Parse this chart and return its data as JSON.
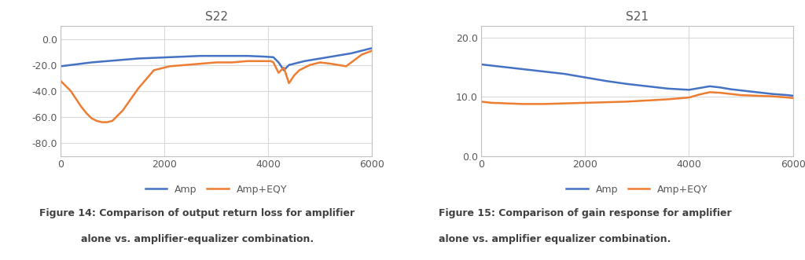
{
  "chart1": {
    "title": "S22",
    "xlim": [
      0,
      6000
    ],
    "ylim": [
      -90,
      10
    ],
    "yticks": [
      0.0,
      -20.0,
      -40.0,
      -60.0,
      -80.0
    ],
    "ytick_labels": [
      "0.0",
      "-20.0",
      "-40.0",
      "-60.0",
      "-80.0"
    ],
    "xticks": [
      0,
      2000,
      4000,
      6000
    ],
    "amp_x": [
      0,
      300,
      600,
      900,
      1200,
      1500,
      1800,
      2100,
      2400,
      2700,
      3000,
      3300,
      3600,
      3900,
      4100,
      4200,
      4300,
      4400,
      4700,
      5000,
      5300,
      5600,
      5900,
      6000
    ],
    "amp_y": [
      -21,
      -19.5,
      -18,
      -17,
      -16,
      -15,
      -14.5,
      -14,
      -13.5,
      -13,
      -13,
      -13,
      -13,
      -13.5,
      -14,
      -18,
      -24,
      -20,
      -17,
      -15,
      -13,
      -11,
      -8,
      -7
    ],
    "eqy_x": [
      0,
      100,
      200,
      300,
      400,
      500,
      600,
      700,
      800,
      900,
      1000,
      1200,
      1500,
      1800,
      2100,
      2400,
      2700,
      3000,
      3300,
      3600,
      3900,
      4000,
      4050,
      4100,
      4200,
      4300,
      4400,
      4500,
      4600,
      4700,
      4800,
      4900,
      5000,
      5200,
      5500,
      5800,
      6000
    ],
    "eqy_y": [
      -32,
      -36,
      -40,
      -46,
      -52,
      -57,
      -61,
      -63,
      -64,
      -64,
      -63,
      -55,
      -38,
      -24,
      -21,
      -20,
      -19,
      -18,
      -18,
      -17,
      -17,
      -17,
      -17,
      -18,
      -26,
      -22,
      -34,
      -28,
      -24,
      -22,
      -20,
      -19,
      -18,
      -19,
      -21,
      -12,
      -9
    ],
    "legend_labels": [
      "Amp",
      "Amp+EQY"
    ],
    "amp_color": "#4472C4",
    "eqy_color": "#ED7D31",
    "caption_line1": "Figure 14: Comparison of output return loss for amplifier",
    "caption_line2": "alone vs. amplifier-equalizer combination."
  },
  "chart2": {
    "title": "S21",
    "xlim": [
      0,
      6000
    ],
    "ylim": [
      0,
      22
    ],
    "yticks": [
      0.0,
      10.0,
      20.0
    ],
    "ytick_labels": [
      "0.0",
      "10.0",
      "20.0"
    ],
    "xticks": [
      0,
      2000,
      4000,
      6000
    ],
    "amp_x": [
      0,
      200,
      500,
      800,
      1200,
      1600,
      2000,
      2400,
      2800,
      3200,
      3600,
      4000,
      4200,
      4400,
      4600,
      4800,
      5000,
      5300,
      5600,
      5900,
      6000
    ],
    "amp_y": [
      15.5,
      15.3,
      15.0,
      14.7,
      14.3,
      13.9,
      13.3,
      12.7,
      12.2,
      11.8,
      11.4,
      11.2,
      11.5,
      11.8,
      11.6,
      11.3,
      11.1,
      10.8,
      10.5,
      10.3,
      10.2
    ],
    "eqy_x": [
      0,
      200,
      500,
      800,
      1200,
      1600,
      2000,
      2400,
      2800,
      3200,
      3600,
      4000,
      4200,
      4400,
      4600,
      4800,
      5000,
      5300,
      5600,
      5900,
      6000
    ],
    "eqy_y": [
      9.2,
      9.0,
      8.9,
      8.8,
      8.8,
      8.9,
      9.0,
      9.1,
      9.2,
      9.4,
      9.6,
      9.9,
      10.4,
      10.8,
      10.7,
      10.5,
      10.3,
      10.2,
      10.1,
      9.9,
      9.8
    ],
    "legend_labels": [
      "Amp",
      "Amp+EQY"
    ],
    "amp_color": "#4472C4",
    "eqy_color": "#ED7D31",
    "caption_line1": "Figure 15: Comparison of gain response for amplifier",
    "caption_line2": "alone vs. amplifier equalizer combination."
  },
  "background_color": "#FFFFFF",
  "plot_bg_color": "#FFFFFF",
  "grid_color": "#D9D9D9",
  "line_width": 1.8,
  "font_color": "#595959",
  "caption_color": "#404040",
  "caption_fontsize": 9.0,
  "title_fontsize": 11,
  "tick_fontsize": 9
}
